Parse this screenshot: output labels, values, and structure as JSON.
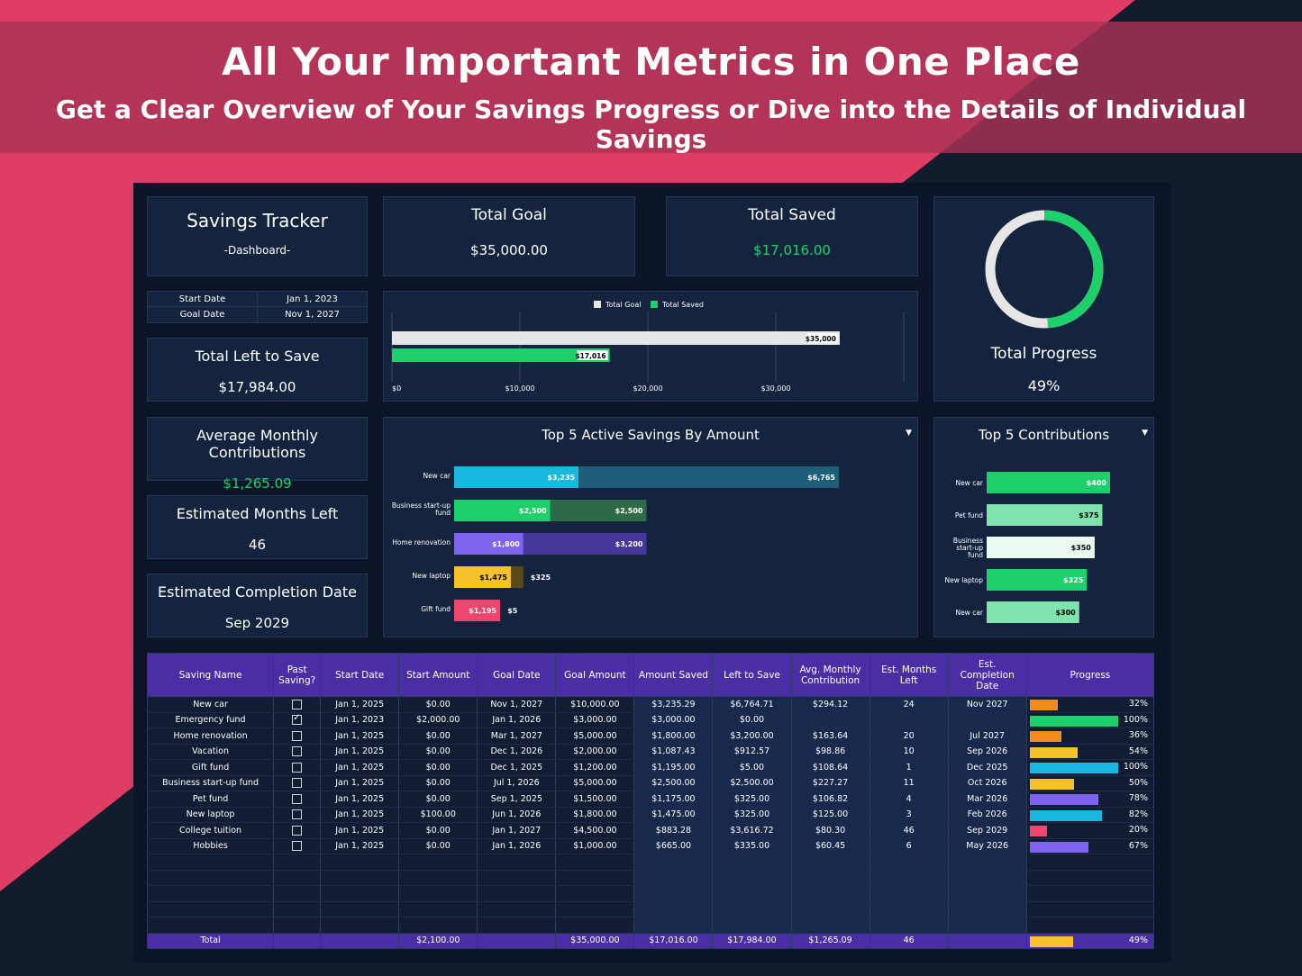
{
  "banner": {
    "title": "All Your Important Metrics in One Place",
    "subtitle": "Get a Clear Overview of Your Savings Progress or Dive into the Details of Individual Savings"
  },
  "colors": {
    "pink": "#e03d66",
    "navy": "#0b1527",
    "panel": "#14233e",
    "purple": "#4a2ea5",
    "green": "#1ed06c",
    "gray": "#e6e6e6"
  },
  "tracker": {
    "title": "Savings Tracker",
    "subtitle": "-Dashboard-"
  },
  "total_goal": {
    "label": "Total Goal",
    "value": "$35,000.00"
  },
  "total_saved": {
    "label": "Total Saved",
    "value": "$17,016.00"
  },
  "dates": {
    "start_label": "Start Date",
    "start_value": "Jan 1, 2023",
    "goal_label": "Goal Date",
    "goal_value": "Nov 1, 2027"
  },
  "total_left": {
    "label": "Total Left to Save",
    "value": "$17,984.00"
  },
  "avg_monthly": {
    "label": "Average Monthly Contributions",
    "value": "$1,265.09"
  },
  "months_left": {
    "label": "Estimated Months Left",
    "value": "46"
  },
  "completion": {
    "label": "Estimated Completion Date",
    "value": "Sep 2029"
  },
  "progress": {
    "label": "Total Progress",
    "value": "49%",
    "fraction": 0.49
  },
  "chart_data": [
    {
      "type": "bar",
      "orientation": "horizontal",
      "legend": [
        "Total Goal",
        "Total Saved"
      ],
      "series": [
        {
          "name": "Total Goal",
          "values": [
            35000
          ],
          "label": "$35,000",
          "color": "#e6e6e6"
        },
        {
          "name": "Total Saved",
          "values": [
            17016
          ],
          "label": "$17,016",
          "color": "#1ed06c"
        }
      ],
      "xticks": [
        "$0",
        "$10,000",
        "$20,000",
        "$30,000"
      ],
      "xlim": [
        0,
        40000
      ]
    },
    {
      "type": "bar",
      "orientation": "horizontal",
      "stacked": true,
      "title": "Top 5 Active Savings By Amount",
      "categories": [
        "New car",
        "Business start-up fund",
        "Home renovation",
        "New laptop",
        "Gift fund"
      ],
      "saved": [
        3235,
        2500,
        1800,
        1475,
        1195
      ],
      "left": [
        6765,
        2500,
        3200,
        325,
        5
      ],
      "saved_labels": [
        "$3,235",
        "$2,500",
        "$1,800",
        "$1,475",
        "$1,195"
      ],
      "left_labels": [
        "$6,765",
        "$2,500",
        "$3,200",
        "$325",
        "$5"
      ],
      "colors": [
        "#1ab8e0",
        "#1ed06c",
        "#7f62ef",
        "#f6c12a",
        "#f0456f"
      ],
      "left_colors": [
        "#1e5e78",
        "#2e6a48",
        "#45379c",
        "#5a4a1b",
        "#5a2235"
      ]
    },
    {
      "type": "bar",
      "orientation": "horizontal",
      "title": "Top 5 Contributions",
      "categories": [
        "New car",
        "Pet fund",
        "Business start-up fund",
        "New laptop",
        "New car"
      ],
      "values": [
        400,
        375,
        350,
        325,
        300
      ],
      "labels": [
        "$400",
        "$375",
        "$350",
        "$325",
        "$300"
      ],
      "colors": [
        "#1ed06c",
        "#7ee3ad",
        "#eafaf0",
        "#1ed06c",
        "#7ee3ad"
      ]
    }
  ],
  "table": {
    "headers": [
      "Saving Name",
      "Past Saving?",
      "Start Date",
      "Start Amount",
      "Goal Date",
      "Goal Amount",
      "Amount Saved",
      "Left to Save",
      "Avg. Monthly Contribution",
      "Est. Months Left",
      "Est. Completion Date",
      "Progress"
    ],
    "rows": [
      {
        "name": "New car",
        "past": false,
        "start_date": "Jan 1, 2025",
        "start_amount": "$0.00",
        "goal_date": "Nov 1, 2027",
        "goal_amount": "$10,000.00",
        "saved": "$3,235.29",
        "left": "$6,764.71",
        "avg": "$294.12",
        "months": "24",
        "completion": "Nov 2027",
        "pct": "32%",
        "fraction": 0.32,
        "color": "#f58a1f"
      },
      {
        "name": "Emergency fund",
        "past": true,
        "start_date": "Jan 1, 2023",
        "start_amount": "$2,000.00",
        "goal_date": "Jan 1, 2026",
        "goal_amount": "$3,000.00",
        "saved": "$3,000.00",
        "left": "$0.00",
        "avg": "",
        "months": "",
        "completion": "",
        "pct": "100%",
        "fraction": 1.0,
        "color": "#1ed06c"
      },
      {
        "name": "Home renovation",
        "past": false,
        "start_date": "Jan 1, 2025",
        "start_amount": "$0.00",
        "goal_date": "Mar 1, 2027",
        "goal_amount": "$5,000.00",
        "saved": "$1,800.00",
        "left": "$3,200.00",
        "avg": "$163.64",
        "months": "20",
        "completion": "Jul 2027",
        "pct": "36%",
        "fraction": 0.36,
        "color": "#f58a1f"
      },
      {
        "name": "Vacation",
        "past": false,
        "start_date": "Jan 1, 2025",
        "start_amount": "$0.00",
        "goal_date": "Dec 1, 2026",
        "goal_amount": "$2,000.00",
        "saved": "$1,087.43",
        "left": "$912.57",
        "avg": "$98.86",
        "months": "10",
        "completion": "Sep 2026",
        "pct": "54%",
        "fraction": 0.54,
        "color": "#f6c12a"
      },
      {
        "name": "Gift fund",
        "past": false,
        "start_date": "Jan 1, 2025",
        "start_amount": "$0.00",
        "goal_date": "Dec 1, 2025",
        "goal_amount": "$1,200.00",
        "saved": "$1,195.00",
        "left": "$5.00",
        "avg": "$108.64",
        "months": "1",
        "completion": "Dec 2025",
        "pct": "100%",
        "fraction": 1.0,
        "color": "#1ab8e0"
      },
      {
        "name": "Business start-up fund",
        "past": false,
        "start_date": "Jan 1, 2025",
        "start_amount": "$0.00",
        "goal_date": "Jul 1, 2026",
        "goal_amount": "$5,000.00",
        "saved": "$2,500.00",
        "left": "$2,500.00",
        "avg": "$227.27",
        "months": "11",
        "completion": "Oct 2026",
        "pct": "50%",
        "fraction": 0.5,
        "color": "#f6c12a"
      },
      {
        "name": "Pet fund",
        "past": false,
        "start_date": "Jan 1, 2025",
        "start_amount": "$0.00",
        "goal_date": "Sep 1, 2025",
        "goal_amount": "$1,500.00",
        "saved": "$1,175.00",
        "left": "$325.00",
        "avg": "$106.82",
        "months": "4",
        "completion": "Mar 2026",
        "pct": "78%",
        "fraction": 0.78,
        "color": "#7f62ef"
      },
      {
        "name": "New laptop",
        "past": false,
        "start_date": "Jan 1, 2025",
        "start_amount": "$100.00",
        "goal_date": "Jun 1, 2026",
        "goal_amount": "$1,800.00",
        "saved": "$1,475.00",
        "left": "$325.00",
        "avg": "$125.00",
        "months": "3",
        "completion": "Feb 2026",
        "pct": "82%",
        "fraction": 0.82,
        "color": "#1ab8e0"
      },
      {
        "name": "College tuition",
        "past": false,
        "start_date": "Jan 1, 2025",
        "start_amount": "$0.00",
        "goal_date": "Jan 1, 2027",
        "goal_amount": "$4,500.00",
        "saved": "$883.28",
        "left": "$3,616.72",
        "avg": "$80.30",
        "months": "46",
        "completion": "Sep 2029",
        "pct": "20%",
        "fraction": 0.2,
        "color": "#f0456f"
      },
      {
        "name": "Hobbies",
        "past": false,
        "start_date": "Jan 1, 2025",
        "start_amount": "$0.00",
        "goal_date": "Jan 1, 2026",
        "goal_amount": "$1,000.00",
        "saved": "$665.00",
        "left": "$335.00",
        "avg": "$60.45",
        "months": "6",
        "completion": "May 2026",
        "pct": "67%",
        "fraction": 0.67,
        "color": "#7f62ef"
      }
    ],
    "total": {
      "label": "Total",
      "start_amount": "$2,100.00",
      "goal_amount": "$35,000.00",
      "saved": "$17,016.00",
      "left": "$17,984.00",
      "avg": "$1,265.09",
      "months": "46",
      "pct": "49%",
      "fraction": 0.49,
      "color": "#f6c12a"
    }
  }
}
